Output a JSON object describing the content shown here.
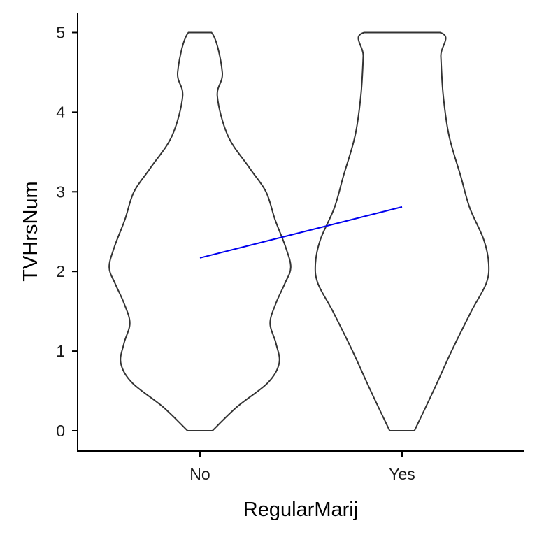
{
  "chart_data": {
    "type": "violin",
    "xlabel": "RegularMarij",
    "ylabel": "TVHrsNum",
    "categories": [
      "No",
      "Yes"
    ],
    "ylim": [
      -0.25,
      5.25
    ],
    "yticks": [
      "0",
      "1",
      "2",
      "3",
      "4",
      "5"
    ],
    "grid": false,
    "violin_color": "#333333",
    "trend_color": "#0000ee",
    "violins": [
      {
        "category": "No",
        "y_min": 0,
        "y_max": 5,
        "half_width_profile": [
          [
            0.0,
            0.15
          ],
          [
            0.3,
            0.45
          ],
          [
            0.6,
            0.82
          ],
          [
            0.85,
            0.96
          ],
          [
            1.1,
            0.92
          ],
          [
            1.35,
            0.85
          ],
          [
            1.6,
            0.92
          ],
          [
            1.85,
            1.03
          ],
          [
            2.05,
            1.1
          ],
          [
            2.3,
            1.04
          ],
          [
            2.65,
            0.91
          ],
          [
            3.0,
            0.8
          ],
          [
            3.3,
            0.6
          ],
          [
            3.7,
            0.34
          ],
          [
            4.2,
            0.21
          ],
          [
            4.5,
            0.27
          ],
          [
            5.0,
            0.14
          ]
        ]
      },
      {
        "category": "Yes",
        "y_min": 0,
        "y_max": 5,
        "half_width_profile": [
          [
            0.0,
            0.15
          ],
          [
            0.5,
            0.38
          ],
          [
            1.0,
            0.6
          ],
          [
            1.5,
            0.84
          ],
          [
            1.85,
            1.02
          ],
          [
            2.1,
            1.05
          ],
          [
            2.4,
            0.99
          ],
          [
            2.8,
            0.82
          ],
          [
            3.2,
            0.71
          ],
          [
            3.7,
            0.57
          ],
          [
            4.2,
            0.5
          ],
          [
            4.7,
            0.47
          ],
          [
            5.0,
            0.46
          ]
        ]
      }
    ],
    "trend_line": {
      "x": [
        "No",
        "Yes"
      ],
      "y": [
        2.17,
        2.81
      ]
    }
  }
}
